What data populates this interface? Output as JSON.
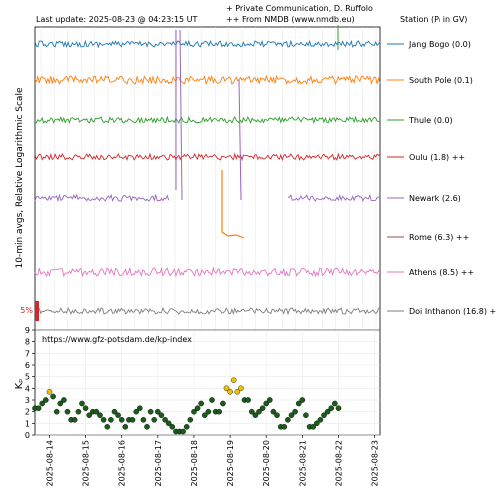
{
  "header": {
    "last_update": "Last update: 2025-08-23 @ 04:23:15 UT",
    "note_line1": "+ Private Communication, D. Ruffolo",
    "note_line2": "++ From NMDB (www.nmdb.eu)",
    "station_header": "Station (Pₗ in GV)"
  },
  "chart_data": [
    {
      "type": "line",
      "title": "",
      "ylabel": "10-min avgs, Relative Logarithmic Scale",
      "scale_bar_label": "5%",
      "grid": true,
      "legend_placement": "right",
      "series": [
        {
          "name": "Jang Bogo (0.0)",
          "color": "#1f77b4"
        },
        {
          "name": "South Pole (0.1)",
          "color": "#ff7f0e"
        },
        {
          "name": "Thule (0.0)",
          "color": "#2ca02c"
        },
        {
          "name": "Oulu (1.8) ++",
          "color": "#d62728"
        },
        {
          "name": "Newark (2.6)",
          "color": "#9467bd"
        },
        {
          "name": "Rome (6.3) ++",
          "color": "#8c564b"
        },
        {
          "name": "Athens (8.5) ++",
          "color": "#e377c2"
        },
        {
          "name": "Doi Inthanon (16.8) +",
          "color": "#7f7f7f"
        }
      ]
    },
    {
      "type": "scatter",
      "title": "",
      "ylabel": "Kₚ",
      "annotation": "https://www.gfz-potsdam.de/kp-index",
      "ylim": [
        0,
        9
      ],
      "yticks": [
        0,
        1,
        2,
        3,
        4,
        5,
        6,
        7,
        8,
        9
      ],
      "xlim": [
        13.6,
        23.15
      ],
      "x_tick_positions": [
        14,
        15,
        16,
        17,
        18,
        19,
        20,
        21,
        22,
        23
      ],
      "x_tick_labels": [
        "2025-08-14",
        "2025-08-15",
        "2025-08-16",
        "2025-08-17",
        "2025-08-18",
        "2025-08-19",
        "2025-08-20",
        "2025-08-21",
        "2025-08-22",
        "2025-08-23"
      ],
      "color_quiet": "#1a5c1a",
      "color_active": "#f0c000",
      "active_threshold": 3.5,
      "points": [
        [
          13.6,
          2.3
        ],
        [
          13.7,
          2.3
        ],
        [
          13.8,
          2.7
        ],
        [
          13.9,
          3.0
        ],
        [
          14.0,
          3.7
        ],
        [
          14.1,
          3.3
        ],
        [
          14.2,
          2.0
        ],
        [
          14.3,
          2.7
        ],
        [
          14.4,
          3.0
        ],
        [
          14.5,
          2.0
        ],
        [
          14.6,
          1.3
        ],
        [
          14.7,
          1.3
        ],
        [
          14.8,
          2.0
        ],
        [
          14.9,
          2.7
        ],
        [
          15.0,
          2.3
        ],
        [
          15.1,
          1.7
        ],
        [
          15.2,
          2.0
        ],
        [
          15.3,
          2.0
        ],
        [
          15.4,
          1.7
        ],
        [
          15.5,
          1.3
        ],
        [
          15.6,
          0.7
        ],
        [
          15.7,
          1.3
        ],
        [
          15.8,
          2.0
        ],
        [
          15.9,
          1.7
        ],
        [
          16.0,
          1.3
        ],
        [
          16.1,
          0.7
        ],
        [
          16.2,
          1.3
        ],
        [
          16.3,
          1.3
        ],
        [
          16.4,
          2.0
        ],
        [
          16.5,
          2.3
        ],
        [
          16.6,
          1.3
        ],
        [
          16.7,
          0.7
        ],
        [
          16.8,
          2.0
        ],
        [
          16.9,
          1.3
        ],
        [
          17.0,
          2.0
        ],
        [
          17.1,
          1.7
        ],
        [
          17.2,
          1.3
        ],
        [
          17.3,
          1.0
        ],
        [
          17.4,
          0.7
        ],
        [
          17.5,
          0.3
        ],
        [
          17.6,
          0.3
        ],
        [
          17.7,
          0.3
        ],
        [
          17.8,
          0.7
        ],
        [
          17.9,
          1.3
        ],
        [
          18.0,
          2.0
        ],
        [
          18.1,
          2.3
        ],
        [
          18.2,
          2.7
        ],
        [
          18.3,
          1.7
        ],
        [
          18.4,
          2.0
        ],
        [
          18.5,
          3.0
        ],
        [
          18.6,
          2.0
        ],
        [
          18.7,
          2.0
        ],
        [
          18.8,
          2.7
        ],
        [
          18.9,
          4.0
        ],
        [
          19.0,
          3.7
        ],
        [
          19.1,
          4.7
        ],
        [
          19.2,
          3.7
        ],
        [
          19.3,
          4.0
        ],
        [
          19.4,
          3.0
        ],
        [
          19.5,
          3.0
        ],
        [
          19.6,
          2.0
        ],
        [
          19.7,
          1.7
        ],
        [
          19.8,
          2.0
        ],
        [
          19.9,
          2.3
        ],
        [
          20.0,
          2.7
        ],
        [
          20.1,
          3.0
        ],
        [
          20.2,
          2.0
        ],
        [
          20.3,
          1.7
        ],
        [
          20.4,
          0.7
        ],
        [
          20.5,
          0.7
        ],
        [
          20.6,
          1.3
        ],
        [
          20.7,
          1.7
        ],
        [
          20.8,
          2.0
        ],
        [
          20.9,
          2.7
        ],
        [
          21.0,
          3.0
        ],
        [
          21.1,
          1.7
        ],
        [
          21.2,
          0.7
        ],
        [
          21.3,
          0.7
        ],
        [
          21.4,
          1.0
        ],
        [
          21.5,
          1.3
        ],
        [
          21.6,
          1.7
        ],
        [
          21.7,
          2.0
        ],
        [
          21.8,
          2.3
        ],
        [
          21.9,
          2.7
        ],
        [
          22.0,
          2.3
        ]
      ]
    }
  ]
}
